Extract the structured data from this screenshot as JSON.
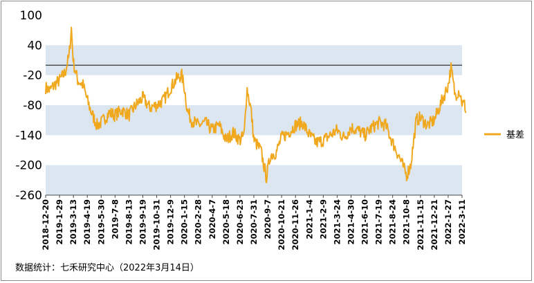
{
  "chart_data": {
    "type": "line",
    "title": "",
    "xlabel": "",
    "ylabel": "",
    "ylim": [
      -260,
      100
    ],
    "yticks": [
      100,
      40,
      -20,
      -80,
      -140,
      -200,
      -260
    ],
    "reference_line": 0,
    "x_tick_labels": [
      "2018-12-20",
      "2019-1-29",
      "2019-3-13",
      "2019-4-19",
      "2019-5-30",
      "2019-7-8",
      "2019-8-13",
      "2019-9-19",
      "2019-10-31",
      "2019-12-9",
      "2020-1-15",
      "2020-2-28",
      "2020-4-7",
      "2020-5-18",
      "2020-6-23",
      "2020-7-31",
      "2020-9-7",
      "2020-10-21",
      "2020-11-26",
      "2021-1-4",
      "2021-2-9",
      "2021-3-24",
      "2021-4-30",
      "2021-6-10",
      "2021-7-19",
      "2021-8-24",
      "2021-10-8",
      "2021-11-15",
      "2021-12-21",
      "2022-1-27",
      "2022-3-11"
    ],
    "series": [
      {
        "name": "基差",
        "color": "#f0a81e",
        "anchors": [
          [
            0,
            -45
          ],
          [
            0.3,
            -50
          ],
          [
            0.6,
            -40
          ],
          [
            1,
            -30
          ],
          [
            1.4,
            -15
          ],
          [
            1.7,
            20
          ],
          [
            1.85,
            75
          ],
          [
            2.0,
            5
          ],
          [
            2.3,
            -30
          ],
          [
            2.7,
            -40
          ],
          [
            3.0,
            -70
          ],
          [
            3.3,
            -95
          ],
          [
            3.7,
            -120
          ],
          [
            4.0,
            -115
          ],
          [
            4.3,
            -105
          ],
          [
            4.6,
            -95
          ],
          [
            5.0,
            -100
          ],
          [
            5.5,
            -90
          ],
          [
            6.0,
            -100
          ],
          [
            6.5,
            -80
          ],
          [
            7.0,
            -65
          ],
          [
            7.5,
            -85
          ],
          [
            8.0,
            -80
          ],
          [
            8.5,
            -70
          ],
          [
            9.0,
            -45
          ],
          [
            9.5,
            -25
          ],
          [
            9.8,
            -20
          ],
          [
            10.0,
            -45
          ],
          [
            10.2,
            -90
          ],
          [
            10.5,
            -110
          ],
          [
            11.0,
            -120
          ],
          [
            11.5,
            -115
          ],
          [
            12.0,
            -130
          ],
          [
            12.5,
            -120
          ],
          [
            13.0,
            -150
          ],
          [
            13.5,
            -135
          ],
          [
            14.0,
            -150
          ],
          [
            14.3,
            -140
          ],
          [
            14.5,
            -45
          ],
          [
            14.8,
            -90
          ],
          [
            15.0,
            -150
          ],
          [
            15.5,
            -170
          ],
          [
            15.9,
            -225
          ],
          [
            16.2,
            -180
          ],
          [
            16.6,
            -175
          ],
          [
            17.0,
            -145
          ],
          [
            17.5,
            -135
          ],
          [
            18.0,
            -120
          ],
          [
            18.5,
            -115
          ],
          [
            19.0,
            -140
          ],
          [
            19.5,
            -155
          ],
          [
            20.0,
            -150
          ],
          [
            20.5,
            -140
          ],
          [
            21.0,
            -130
          ],
          [
            21.5,
            -145
          ],
          [
            22.0,
            -125
          ],
          [
            22.5,
            -130
          ],
          [
            23.0,
            -140
          ],
          [
            23.5,
            -125
          ],
          [
            24.0,
            -115
          ],
          [
            24.5,
            -120
          ],
          [
            25.0,
            -155
          ],
          [
            25.5,
            -185
          ],
          [
            26.0,
            -220
          ],
          [
            26.3,
            -200
          ],
          [
            26.7,
            -110
          ],
          [
            27.0,
            -105
          ],
          [
            27.5,
            -120
          ],
          [
            28.0,
            -110
          ],
          [
            28.5,
            -75
          ],
          [
            29.0,
            -40
          ],
          [
            29.2,
            -5
          ],
          [
            29.5,
            -60
          ],
          [
            29.8,
            -50
          ],
          [
            30.0,
            -75
          ],
          [
            30.2,
            -80
          ],
          [
            30.3,
            -95
          ]
        ]
      }
    ],
    "legend_position": "right",
    "grid": "alternating horizontal bands"
  },
  "source_note": "数据统计：七禾研究中心（2022年3月14日）"
}
